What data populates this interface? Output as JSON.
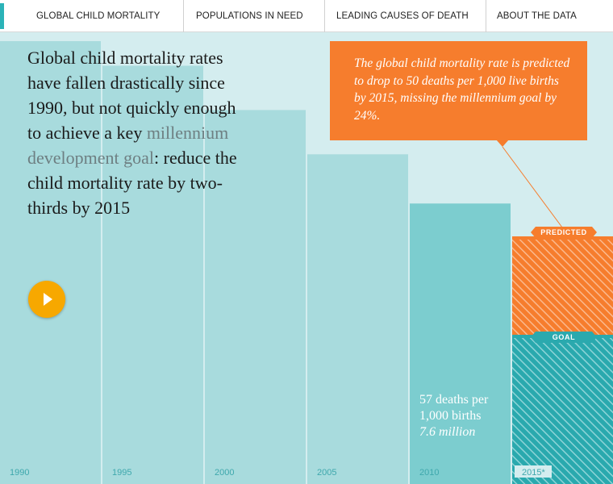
{
  "nav": {
    "items": [
      {
        "label": "GLOBAL CHILD MORTALITY",
        "active": true
      },
      {
        "label": "POPULATIONS IN NEED",
        "active": false
      },
      {
        "label": "LEADING CAUSES OF DEATH",
        "active": false
      },
      {
        "label": "ABOUT THE DATA",
        "active": false
      }
    ]
  },
  "intro": {
    "text_before": "Global child mortality rates have fallen drastically since 1990, but not quickly enough to achieve a key ",
    "highlight": "millennium development goal",
    "text_after": ": reduce the child mortality rate by two-thirds by 2015"
  },
  "play_button": {
    "icon": "play-icon",
    "color": "#f7a800"
  },
  "callout": {
    "text": "The global child mortality rate is predicted to drop to 50 deaths per 1,000 live births by 2015, missing the millennium goal by 24%.",
    "color": "#f67d2d"
  },
  "annotation_2010": {
    "line1": "57 deaths per",
    "line2": "1,000 births",
    "line3": "7.6 million"
  },
  "chart_data": {
    "type": "bar",
    "categories": [
      "1990",
      "1995",
      "2000",
      "2005",
      "2010",
      "2015*"
    ],
    "series": [
      {
        "values": [
          90,
          85,
          76,
          67,
          57,
          50
        ]
      }
    ],
    "goal_2015": 30,
    "predicted_2015": 50,
    "labels": {
      "predicted": "PREDICTED",
      "goal": "GOAL"
    },
    "ylim": [
      0,
      100
    ],
    "colors": {
      "bar": "#a8dbdd",
      "bar_2010": "#7ccdcf",
      "predicted": "#f67d2d",
      "goal": "#2aa9ae",
      "background": "#d4edef"
    }
  }
}
